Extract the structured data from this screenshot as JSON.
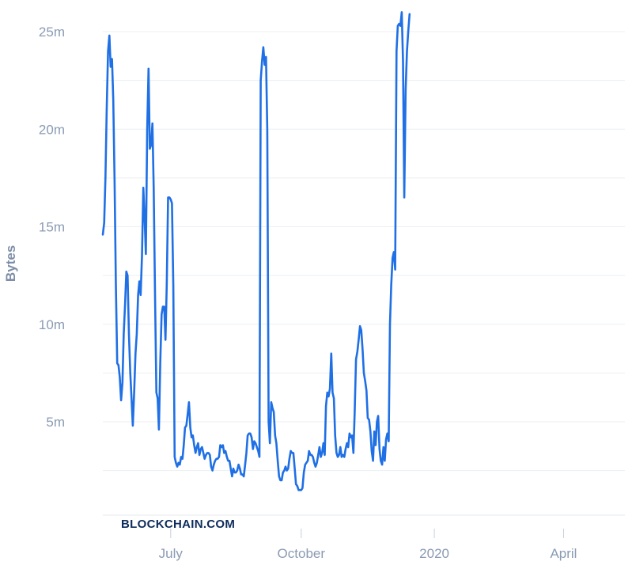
{
  "watermark": "BLOCKCHAIN.COM",
  "colors": {
    "line": "#1f6fe5",
    "grid": "#eceff3",
    "tick_text": "#8a9bb3"
  },
  "chart_data": {
    "type": "line",
    "ylabel": "Bytes",
    "xlabel": "",
    "ylim": [
      -2800000,
      26000000
    ],
    "xlim": [
      0,
      400
    ],
    "x_ticks": [
      {
        "label": "July",
        "x": 52
      },
      {
        "label": "October",
        "x": 152
      },
      {
        "label": "2020",
        "x": 254
      },
      {
        "label": "April",
        "x": 353
      }
    ],
    "y_ticks": [
      {
        "label": "5m",
        "value": 5000000
      },
      {
        "label": "10m",
        "value": 10000000
      },
      {
        "label": "15m",
        "value": 15000000
      },
      {
        "label": "20m",
        "value": 20000000
      },
      {
        "label": "25m",
        "value": 25000000
      }
    ],
    "series": [
      {
        "values": [
          [
            0,
            14600000
          ],
          [
            1,
            15200000
          ],
          [
            2,
            17500000
          ],
          [
            3,
            21000000
          ],
          [
            4,
            24000000
          ],
          [
            5,
            24800000
          ],
          [
            6,
            23200000
          ],
          [
            7,
            23600000
          ],
          [
            8,
            21500000
          ],
          [
            9,
            17500000
          ],
          [
            10,
            12000000
          ],
          [
            11,
            8000000
          ],
          [
            12,
            7900000
          ],
          [
            13,
            7300000
          ],
          [
            14,
            6100000
          ],
          [
            15,
            7000000
          ],
          [
            16,
            9500000
          ],
          [
            17,
            11000000
          ],
          [
            18,
            12700000
          ],
          [
            19,
            12500000
          ],
          [
            20,
            9500000
          ],
          [
            21,
            7500000
          ],
          [
            22,
            6200000
          ],
          [
            23,
            4800000
          ],
          [
            24,
            6500000
          ],
          [
            25,
            8500000
          ],
          [
            26,
            9500000
          ],
          [
            27,
            11500000
          ],
          [
            28,
            12200000
          ],
          [
            29,
            11500000
          ],
          [
            30,
            13500000
          ],
          [
            31,
            17000000
          ],
          [
            32,
            15500000
          ],
          [
            33,
            13600000
          ],
          [
            34,
            20000000
          ],
          [
            35,
            23100000
          ],
          [
            36,
            19000000
          ],
          [
            37,
            19200000
          ],
          [
            38,
            20300000
          ],
          [
            39,
            17000000
          ],
          [
            40,
            11500000
          ],
          [
            41,
            6500000
          ],
          [
            42,
            6200000
          ],
          [
            43,
            4600000
          ],
          [
            44,
            8000000
          ],
          [
            45,
            10500000
          ],
          [
            46,
            10900000
          ],
          [
            47,
            10900000
          ],
          [
            48,
            9200000
          ],
          [
            49,
            12000000
          ],
          [
            50,
            16500000
          ],
          [
            51,
            16500000
          ],
          [
            52,
            16400000
          ],
          [
            53,
            16200000
          ],
          [
            54,
            12000000
          ],
          [
            55,
            3200000
          ],
          [
            56,
            2900000
          ],
          [
            57,
            2700000
          ],
          [
            58,
            2900000
          ],
          [
            59,
            2800000
          ],
          [
            60,
            3200000
          ],
          [
            61,
            3100000
          ],
          [
            62,
            3800000
          ],
          [
            63,
            4700000
          ],
          [
            64,
            4800000
          ],
          [
            65,
            5400000
          ],
          [
            66,
            6000000
          ],
          [
            67,
            4700000
          ],
          [
            68,
            4200000
          ],
          [
            69,
            4300000
          ],
          [
            70,
            3800000
          ],
          [
            71,
            3400000
          ],
          [
            72,
            3700000
          ],
          [
            73,
            3900000
          ],
          [
            74,
            3300000
          ],
          [
            75,
            3600000
          ],
          [
            76,
            3700000
          ],
          [
            77,
            3400000
          ],
          [
            78,
            3100000
          ],
          [
            79,
            3300000
          ],
          [
            80,
            3400000
          ],
          [
            81,
            3400000
          ],
          [
            82,
            3300000
          ],
          [
            83,
            2700000
          ],
          [
            84,
            2500000
          ],
          [
            85,
            2800000
          ],
          [
            86,
            3000000
          ],
          [
            87,
            3100000
          ],
          [
            88,
            3100000
          ],
          [
            89,
            3200000
          ],
          [
            90,
            3800000
          ],
          [
            91,
            3700000
          ],
          [
            92,
            3800000
          ],
          [
            93,
            3400000
          ],
          [
            94,
            3500000
          ],
          [
            95,
            3200000
          ],
          [
            96,
            3000000
          ],
          [
            97,
            3000000
          ],
          [
            98,
            2600000
          ],
          [
            99,
            2200000
          ],
          [
            100,
            2600000
          ],
          [
            101,
            2400000
          ],
          [
            102,
            2400000
          ],
          [
            103,
            2500000
          ],
          [
            104,
            2800000
          ],
          [
            105,
            2600000
          ],
          [
            106,
            2300000
          ],
          [
            107,
            2300000
          ],
          [
            108,
            2200000
          ],
          [
            109,
            2800000
          ],
          [
            110,
            3400000
          ],
          [
            111,
            4300000
          ],
          [
            112,
            4400000
          ],
          [
            113,
            4400000
          ],
          [
            114,
            4200000
          ],
          [
            115,
            3600000
          ],
          [
            116,
            4000000
          ],
          [
            117,
            3900000
          ],
          [
            118,
            3700000
          ],
          [
            119,
            3500000
          ],
          [
            120,
            3200000
          ],
          [
            121,
            22500000
          ],
          [
            122,
            23500000
          ],
          [
            123,
            24200000
          ],
          [
            124,
            23300000
          ],
          [
            125,
            23700000
          ],
          [
            126,
            20000000
          ],
          [
            127,
            5000000
          ],
          [
            128,
            3900000
          ],
          [
            129,
            6000000
          ],
          [
            130,
            5700000
          ],
          [
            131,
            5500000
          ],
          [
            132,
            4300000
          ],
          [
            133,
            3900000
          ],
          [
            134,
            3000000
          ],
          [
            135,
            2200000
          ],
          [
            136,
            2000000
          ],
          [
            137,
            2000000
          ],
          [
            138,
            2400000
          ],
          [
            139,
            2500000
          ],
          [
            140,
            2700000
          ],
          [
            141,
            2500000
          ],
          [
            142,
            2600000
          ],
          [
            143,
            3100000
          ],
          [
            144,
            3500000
          ],
          [
            145,
            3400000
          ],
          [
            146,
            3400000
          ],
          [
            147,
            2600000
          ],
          [
            148,
            1800000
          ],
          [
            149,
            1700000
          ],
          [
            150,
            1500000
          ],
          [
            151,
            1500000
          ],
          [
            152,
            1500000
          ],
          [
            153,
            1600000
          ],
          [
            154,
            2400000
          ],
          [
            155,
            2800000
          ],
          [
            156,
            2900000
          ],
          [
            157,
            3000000
          ],
          [
            158,
            3500000
          ],
          [
            159,
            3300000
          ],
          [
            160,
            3300000
          ],
          [
            161,
            3200000
          ],
          [
            162,
            2900000
          ],
          [
            163,
            2700000
          ],
          [
            164,
            2900000
          ],
          [
            165,
            3300000
          ],
          [
            166,
            3700000
          ],
          [
            167,
            3200000
          ],
          [
            168,
            3400000
          ],
          [
            169,
            3900000
          ],
          [
            170,
            3300000
          ],
          [
            171,
            5800000
          ],
          [
            172,
            6500000
          ],
          [
            173,
            6300000
          ],
          [
            174,
            6700000
          ],
          [
            175,
            8500000
          ],
          [
            176,
            6500000
          ],
          [
            177,
            6200000
          ],
          [
            178,
            4300000
          ],
          [
            179,
            3400000
          ],
          [
            180,
            3200000
          ],
          [
            181,
            3300000
          ],
          [
            182,
            3700000
          ],
          [
            183,
            3200000
          ],
          [
            184,
            3300000
          ],
          [
            185,
            3200000
          ],
          [
            186,
            3600000
          ],
          [
            187,
            3900000
          ],
          [
            188,
            3700000
          ],
          [
            189,
            4400000
          ],
          [
            190,
            4200000
          ],
          [
            191,
            4300000
          ],
          [
            192,
            3400000
          ],
          [
            193,
            5500000
          ],
          [
            194,
            8200000
          ],
          [
            195,
            8600000
          ],
          [
            196,
            9200000
          ],
          [
            197,
            9900000
          ],
          [
            198,
            9700000
          ],
          [
            199,
            8700000
          ],
          [
            200,
            7500000
          ],
          [
            201,
            7100000
          ],
          [
            202,
            6600000
          ],
          [
            203,
            5200000
          ],
          [
            204,
            5100000
          ],
          [
            205,
            4500000
          ],
          [
            206,
            3500000
          ],
          [
            207,
            3000000
          ],
          [
            208,
            4500000
          ],
          [
            209,
            3800000
          ],
          [
            210,
            5000000
          ],
          [
            211,
            5300000
          ],
          [
            212,
            3600000
          ],
          [
            213,
            3000000
          ],
          [
            214,
            2800000
          ],
          [
            215,
            3700000
          ],
          [
            216,
            3000000
          ],
          [
            217,
            4100000
          ],
          [
            218,
            4400000
          ],
          [
            219,
            4000000
          ],
          [
            220,
            10000000
          ],
          [
            221,
            12000000
          ],
          [
            222,
            13400000
          ],
          [
            223,
            13700000
          ],
          [
            224,
            12800000
          ],
          [
            225,
            24000000
          ],
          [
            226,
            25300000
          ],
          [
            227,
            25400000
          ],
          [
            228,
            25300000
          ],
          [
            229,
            26000000
          ],
          [
            230,
            23500000
          ],
          [
            231,
            16500000
          ],
          [
            232,
            22000000
          ],
          [
            233,
            24000000
          ],
          [
            234,
            25000000
          ],
          [
            235,
            25900000
          ]
        ]
      }
    ]
  }
}
